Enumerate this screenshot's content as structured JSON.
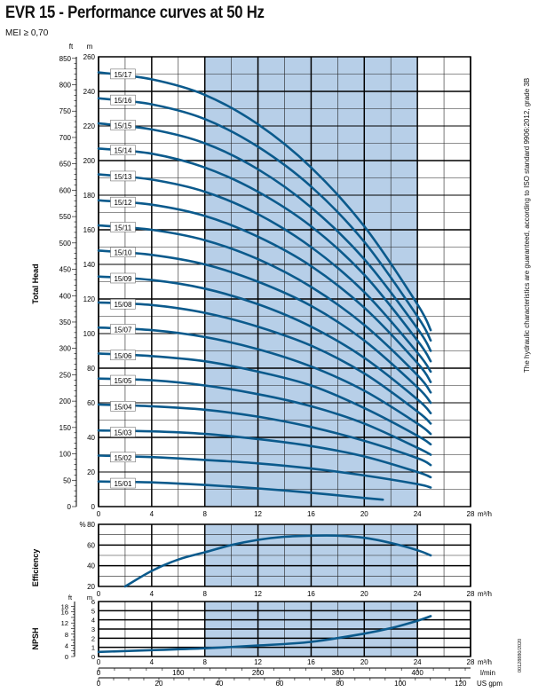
{
  "header": {
    "title": "EVR 15 - Performance curves at 50 Hz",
    "subtitle": "MEI ≥ 0,70"
  },
  "side_note": "The hydraulic characteristics are guaranteed, according to ISO standard 9906:2012, grade 3B",
  "code_note": "00128880/2020",
  "colors": {
    "curve": "#0b5a8c",
    "band": "#b7cfe8",
    "grid": "#000000"
  },
  "chart_data": [
    {
      "type": "line",
      "name": "head",
      "ylabel": "Total Head",
      "xunit": "m³/h",
      "yunit_left": "ft",
      "yunit_right": "m",
      "xlim": [
        0,
        28
      ],
      "ylim": [
        0,
        260
      ],
      "x_ticks": [
        0,
        4,
        8,
        12,
        16,
        20,
        24,
        28
      ],
      "y_ticks_m": [
        0,
        20,
        40,
        60,
        80,
        100,
        120,
        140,
        160,
        180,
        200,
        220,
        240,
        260
      ],
      "y_ticks_ft": [
        0,
        50,
        100,
        150,
        200,
        250,
        300,
        350,
        400,
        450,
        500,
        550,
        600,
        650,
        700,
        750,
        800,
        850
      ],
      "band": [
        8,
        24
      ],
      "series_labels": [
        "15/01",
        "15/02",
        "15/03",
        "15/04",
        "15/05",
        "15/06",
        "15/07",
        "15/08",
        "15/09",
        "15/10",
        "15/11",
        "15/12",
        "15/13",
        "15/14",
        "15/15",
        "15/16",
        "15/17"
      ],
      "series": [
        {
          "name": "15/01",
          "x": [
            0,
            4,
            8,
            12,
            16,
            20,
            21.4
          ],
          "y": [
            14.5,
            14,
            12.5,
            10.5,
            8,
            5,
            4
          ]
        },
        {
          "name": "15/02",
          "x": [
            0,
            4,
            8,
            12,
            16,
            20,
            24,
            25
          ],
          "y": [
            29.5,
            28.6,
            27,
            25,
            22,
            18,
            13,
            11
          ]
        },
        {
          "name": "15/03",
          "x": [
            0,
            4,
            8,
            12,
            16,
            20,
            24,
            25
          ],
          "y": [
            44,
            43.5,
            42,
            39,
            35,
            29,
            20,
            17
          ]
        },
        {
          "name": "15/04",
          "x": [
            0,
            4,
            8,
            12,
            16,
            20,
            24,
            25
          ],
          "y": [
            59,
            58,
            56,
            52,
            46,
            38,
            28,
            24
          ]
        },
        {
          "name": "15/05",
          "x": [
            0,
            4,
            8,
            12,
            16,
            20,
            24,
            25
          ],
          "y": [
            74,
            73,
            70,
            65,
            58,
            48,
            34,
            30
          ]
        },
        {
          "name": "15/06",
          "x": [
            0,
            4,
            8,
            12,
            16,
            20,
            24,
            25
          ],
          "y": [
            88.5,
            87,
            84,
            78,
            70,
            57,
            41,
            36
          ]
        },
        {
          "name": "15/07",
          "x": [
            0,
            4,
            8,
            12,
            16,
            20,
            24,
            25
          ],
          "y": [
            103.5,
            102,
            98,
            91,
            81,
            67,
            48,
            42
          ]
        },
        {
          "name": "15/08",
          "x": [
            0,
            4,
            8,
            12,
            16,
            20,
            24,
            25
          ],
          "y": [
            118,
            116.5,
            112,
            104,
            93,
            77,
            55,
            48
          ]
        },
        {
          "name": "15/09",
          "x": [
            0,
            4,
            8,
            12,
            16,
            20,
            24,
            25
          ],
          "y": [
            133,
            131,
            126,
            117,
            104,
            86,
            62,
            54
          ]
        },
        {
          "name": "15/10",
          "x": [
            0,
            4,
            8,
            12,
            16,
            20,
            24,
            25
          ],
          "y": [
            148,
            145.5,
            140,
            130,
            116,
            96,
            69,
            60
          ]
        },
        {
          "name": "15/11",
          "x": [
            0,
            4,
            8,
            12,
            16,
            20,
            24,
            25
          ],
          "y": [
            162.5,
            160,
            154,
            143,
            127,
            105,
            76,
            66
          ]
        },
        {
          "name": "15/12",
          "x": [
            0,
            4,
            8,
            12,
            16,
            20,
            24,
            25
          ],
          "y": [
            177,
            174.5,
            168,
            156,
            139,
            115,
            83,
            72
          ]
        },
        {
          "name": "15/13",
          "x": [
            0,
            4,
            8,
            12,
            16,
            20,
            24,
            25
          ],
          "y": [
            192,
            189,
            182,
            169,
            150,
            124,
            89,
            78
          ]
        },
        {
          "name": "15/14",
          "x": [
            0,
            4,
            8,
            12,
            16,
            20,
            24,
            25
          ],
          "y": [
            207,
            204,
            196,
            182,
            162,
            134,
            96,
            84
          ]
        },
        {
          "name": "15/15",
          "x": [
            0,
            4,
            8,
            12,
            16,
            20,
            24,
            25
          ],
          "y": [
            221.5,
            218,
            210,
            195,
            173,
            143,
            103,
            90
          ]
        },
        {
          "name": "15/16",
          "x": [
            0,
            4,
            8,
            12,
            16,
            20,
            24,
            25
          ],
          "y": [
            236,
            232.5,
            224,
            208,
            185,
            153,
            110,
            96
          ]
        },
        {
          "name": "15/17",
          "x": [
            0,
            4,
            8,
            12,
            16,
            20,
            24,
            25
          ],
          "y": [
            251,
            247,
            238,
            221,
            196,
            162,
            117,
            102
          ]
        }
      ]
    },
    {
      "type": "line",
      "name": "efficiency",
      "ylabel": "Efficiency",
      "xunit": "m³/h",
      "yunit": "%",
      "xlim": [
        0,
        28
      ],
      "ylim": [
        20,
        80
      ],
      "x_ticks": [
        0,
        4,
        8,
        12,
        16,
        20,
        24,
        28
      ],
      "y_ticks": [
        20,
        40,
        60,
        80
      ],
      "band": [
        8,
        24
      ],
      "series": [
        {
          "x": [
            2,
            4,
            6,
            8,
            10,
            12,
            14,
            16,
            18,
            20,
            22,
            24,
            25
          ],
          "y": [
            20,
            35,
            46,
            53,
            60,
            65,
            68,
            69,
            69,
            67,
            62,
            55,
            50
          ]
        }
      ]
    },
    {
      "type": "line",
      "name": "npsh",
      "ylabel": "NPSH",
      "xunit": "m³/h",
      "yunit_left": "ft",
      "yunit_right": "m",
      "xlim": [
        0,
        28
      ],
      "ylim": [
        0,
        6
      ],
      "x_ticks": [
        0,
        4,
        8,
        12,
        16,
        20,
        24,
        28
      ],
      "y_ticks_m": [
        0,
        1,
        2,
        3,
        4,
        5,
        6
      ],
      "y_ticks_ft": [
        0,
        4,
        8,
        12,
        16,
        18
      ],
      "band": [
        8,
        24
      ],
      "series": [
        {
          "x": [
            0,
            4,
            8,
            12,
            16,
            20,
            22,
            24,
            25
          ],
          "y": [
            0.5,
            0.7,
            0.9,
            1.2,
            1.6,
            2.5,
            3.1,
            3.9,
            4.4
          ]
        }
      ],
      "secondary_axes": [
        {
          "unit": "l/min",
          "ticks": [
            0,
            100,
            200,
            300,
            400
          ]
        },
        {
          "unit": "US gpm",
          "ticks": [
            0,
            20,
            40,
            60,
            80,
            100,
            120
          ]
        }
      ]
    }
  ]
}
